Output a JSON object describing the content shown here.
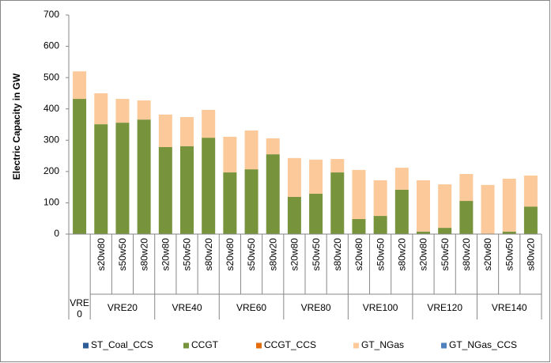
{
  "chart_data": {
    "type": "bar",
    "stacked": true,
    "y_label": "Electric Capacity in GW",
    "ylim": [
      0,
      700
    ],
    "yticks": [
      0,
      100,
      200,
      300,
      400,
      500,
      600,
      700
    ],
    "grid": false,
    "legend": "bottom",
    "categories": [
      null,
      "s20w80",
      "s50w50",
      "s80w20",
      "s20w80",
      "s50w50",
      "s80w20",
      "s20w80",
      "s50w50",
      "s80w20",
      "s20w80",
      "s50w50",
      "s80w20",
      "s20w80",
      "s50w50",
      "s80w20",
      "s20w80",
      "s50w50",
      "s80w20",
      "s20w80",
      "s50w50",
      "s80w20"
    ],
    "group_categories": [
      "VRE0",
      "VRE20",
      "VRE20",
      "VRE20",
      "VRE40",
      "VRE40",
      "VRE40",
      "VRE60",
      "VRE60",
      "VRE60",
      "VRE80",
      "VRE80",
      "VRE80",
      "VRE100",
      "VRE100",
      "VRE100",
      "VRE120",
      "VRE120",
      "VRE120",
      "VRE140",
      "VRE140",
      "VRE140"
    ],
    "series": [
      {
        "name": "ST_Coal_CCS",
        "color": "#2c5d98",
        "values": [
          0,
          0,
          0,
          0,
          0,
          0,
          0,
          0,
          0,
          0,
          0,
          0,
          0,
          0,
          0,
          0,
          0,
          0,
          0,
          0,
          0,
          0
        ]
      },
      {
        "name": "CCGT",
        "color": "#77933c",
        "values": [
          432,
          351,
          356,
          366,
          278,
          281,
          308,
          197,
          207,
          255,
          119,
          129,
          197,
          48,
          58,
          142,
          8,
          20,
          106,
          0,
          8,
          88
        ]
      },
      {
        "name": "CCGT_CCS",
        "color": "#e46c0a",
        "values": [
          0,
          0,
          0,
          0,
          0,
          0,
          0,
          0,
          0,
          0,
          0,
          0,
          0,
          0,
          0,
          0,
          0,
          0,
          0,
          0,
          0,
          0
        ]
      },
      {
        "name": "GT_NGas",
        "color": "#fbc99a",
        "values": [
          88,
          99,
          76,
          61,
          104,
          93,
          89,
          114,
          124,
          51,
          124,
          109,
          43,
          157,
          114,
          70,
          164,
          139,
          86,
          157,
          169,
          99
        ]
      },
      {
        "name": "GT_NGas_CCS",
        "color": "#4f81bd",
        "values": [
          0,
          0,
          0,
          0,
          0,
          0,
          0,
          0,
          0,
          0,
          0,
          0,
          0,
          0,
          0,
          0,
          0,
          0,
          0,
          0,
          0,
          0
        ]
      }
    ]
  }
}
